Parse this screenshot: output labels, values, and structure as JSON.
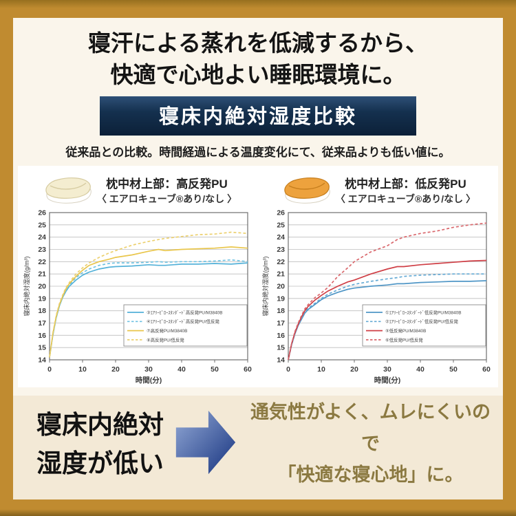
{
  "header": {
    "title_line1": "寝汗による蒸れを低減するから、",
    "title_line2": "快適で心地よい睡眠環境に。",
    "banner": "寝床内絶対湿度比較",
    "subtitle": "従来品との比較。時間経過による温度変化にて、従来品よりも低い値に。"
  },
  "charts": [
    {
      "header_prefix": "枕中材上部：",
      "header_bold": "高反発PU",
      "header_sub": "〈 エアロキューブ®あり/なし 〉",
      "pillow_color": "#f4edd0",
      "pillow_edge": "#d6cba0",
      "pillow_icon": "cream-pillow-icon"
    },
    {
      "header_prefix": "枕中材上部：",
      "header_bold": "低反発PU",
      "header_sub": "〈 エアロキューブ®あり/なし 〉",
      "pillow_color": "#eda23d",
      "pillow_edge": "#c67e1d",
      "pillow_icon": "orange-pillow-icon"
    }
  ],
  "chart_data": [
    {
      "type": "line",
      "title": "枕中材上部：高反発PU 〈 エアロキューブ®あり/なし 〉",
      "xlabel": "時間(分)",
      "ylabel": "寝床内絶対湿度(g/m³)",
      "xlim": [
        0,
        60
      ],
      "ylim": [
        14,
        26
      ],
      "xticks": [
        0,
        10,
        20,
        30,
        40,
        50,
        60
      ],
      "yticks": [
        14,
        15,
        16,
        17,
        18,
        19,
        20,
        21,
        22,
        23,
        24,
        25,
        26
      ],
      "grid": "horizontal",
      "legend_position": "inside-bottom-right",
      "x": [
        0,
        1,
        2,
        3,
        4,
        5,
        6,
        8,
        10,
        12,
        15,
        18,
        20,
        25,
        30,
        33,
        35,
        40,
        45,
        50,
        55,
        60
      ],
      "series": [
        {
          "name": "③ｴｱﾘｰﾋﾟﾛｰｽﾀﾝﾀﾞｰﾄﾞ高反発PU/M3840B",
          "color": "#53b1d8",
          "dash": "solid",
          "values": [
            14.2,
            16.0,
            17.4,
            18.4,
            19.1,
            19.6,
            20.0,
            20.5,
            20.9,
            21.15,
            21.4,
            21.55,
            21.6,
            21.65,
            21.75,
            21.7,
            21.7,
            21.8,
            21.8,
            21.85,
            21.8,
            21.9
          ]
        },
        {
          "name": "④ｴｱﾘｰﾋﾟﾛｰｽﾀﾝﾀﾞｰﾄﾞ高反発PU/低反発",
          "color": "#6fc2e2",
          "dash": "dashed",
          "values": [
            14.2,
            16.1,
            17.5,
            18.5,
            19.2,
            19.7,
            20.1,
            20.7,
            21.1,
            21.4,
            21.7,
            21.85,
            21.9,
            21.9,
            21.95,
            22.0,
            21.95,
            22.0,
            22.0,
            22.05,
            22.15,
            22.0
          ]
        },
        {
          "name": "⑦高反発PU/M3840B",
          "color": "#e9c64b",
          "dash": "solid",
          "values": [
            14.2,
            16.1,
            17.5,
            18.5,
            19.2,
            19.8,
            20.2,
            20.8,
            21.3,
            21.7,
            22.0,
            22.2,
            22.35,
            22.55,
            22.85,
            23.0,
            22.9,
            23.0,
            23.05,
            23.1,
            23.2,
            23.1
          ]
        },
        {
          "name": "⑧高反発PU/低反発",
          "color": "#ecd06e",
          "dash": "dashed",
          "values": [
            14.2,
            16.2,
            17.6,
            18.6,
            19.3,
            19.9,
            20.3,
            21.0,
            21.5,
            21.9,
            22.35,
            22.7,
            22.9,
            23.35,
            23.65,
            23.8,
            23.9,
            24.05,
            24.2,
            24.25,
            24.4,
            24.3
          ]
        }
      ]
    },
    {
      "type": "line",
      "title": "枕中材上部：低反発PU 〈 エアロキューブ®あり/なし 〉",
      "xlabel": "時間(分)",
      "ylabel": "寝床内絶対湿度(g/m³)",
      "xlim": [
        0,
        60
      ],
      "ylim": [
        14,
        26
      ],
      "xticks": [
        0,
        10,
        20,
        30,
        40,
        50,
        60
      ],
      "yticks": [
        14,
        15,
        16,
        17,
        18,
        19,
        20,
        21,
        22,
        23,
        24,
        25,
        26
      ],
      "grid": "horizontal",
      "legend_position": "inside-bottom-right",
      "x": [
        0,
        1,
        2,
        3,
        4,
        5,
        6,
        8,
        10,
        12,
        15,
        18,
        20,
        25,
        30,
        33,
        35,
        40,
        45,
        50,
        55,
        60
      ],
      "series": [
        {
          "name": "①ｴｱﾘｰﾋﾟﾛｰｽﾀﾝﾀﾞｰﾄﾞ低反発PU/M3840B",
          "color": "#4f96c6",
          "dash": "solid",
          "values": [
            14.0,
            15.2,
            16.1,
            16.8,
            17.3,
            17.8,
            18.1,
            18.5,
            18.9,
            19.2,
            19.5,
            19.75,
            19.85,
            20.0,
            20.1,
            20.2,
            20.2,
            20.3,
            20.35,
            20.4,
            20.4,
            20.45
          ]
        },
        {
          "name": "②ｴｱﾘｰﾋﾟﾛｰｽﾀﾝﾀﾞｰﾄﾞ低反発PU/低反発",
          "color": "#63a9d4",
          "dash": "dashed",
          "values": [
            14.0,
            15.3,
            16.2,
            16.9,
            17.4,
            17.9,
            18.2,
            18.6,
            19.0,
            19.35,
            19.7,
            20.0,
            20.15,
            20.4,
            20.6,
            20.7,
            20.8,
            20.9,
            20.95,
            21.0,
            21.0,
            21.0
          ]
        },
        {
          "name": "⑤低反発PU/M3840B",
          "color": "#cf3e45",
          "dash": "solid",
          "values": [
            14.0,
            15.3,
            16.2,
            16.9,
            17.5,
            18.0,
            18.35,
            18.85,
            19.25,
            19.6,
            20.0,
            20.35,
            20.5,
            21.0,
            21.4,
            21.6,
            21.6,
            21.75,
            21.85,
            21.95,
            22.05,
            22.1
          ]
        },
        {
          "name": "⑥低反発PU/低反発",
          "color": "#d9676c",
          "dash": "dashed",
          "values": [
            14.0,
            15.3,
            16.3,
            17.0,
            17.6,
            18.15,
            18.5,
            19.05,
            19.45,
            19.9,
            20.8,
            21.5,
            22.0,
            22.8,
            23.3,
            23.8,
            24.0,
            24.3,
            24.5,
            24.8,
            25.0,
            25.15
          ]
        }
      ]
    }
  ],
  "conclusion": {
    "left_line1": "寝床内絶対",
    "left_line2": "湿度が低い",
    "right_line1": "通気性がよく、ムレにくいので",
    "right_line2": "「快適な寝心地」に。",
    "arrow_color_start": "#93a9d6",
    "arrow_color_end": "#16337f"
  },
  "colors": {
    "frame_gold": "#c08b30",
    "page_cream": "#faf5eb",
    "banner_navy": "#0c2038",
    "panel_white": "#ffffff",
    "bottom_beige": "#f3e9d6",
    "accent_text_gold": "#8b7941"
  }
}
